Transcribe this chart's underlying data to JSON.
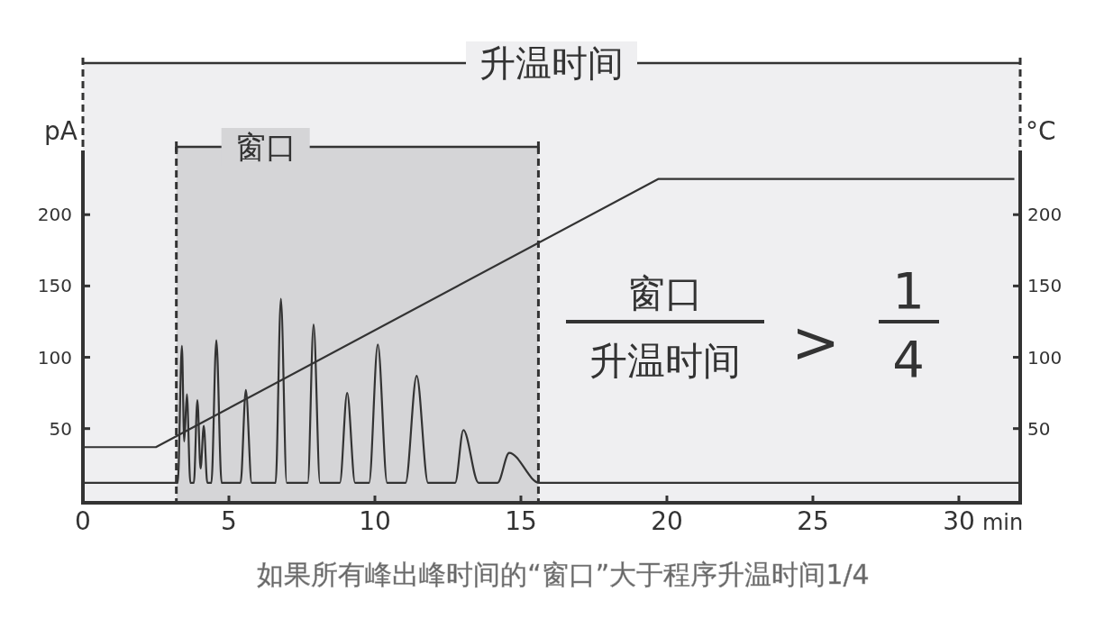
{
  "chart_data": {
    "type": "line",
    "xlabel": "min",
    "ylabel": "pA",
    "y2label": "°C",
    "xlim": [
      0,
      32.1
    ],
    "xticks": [
      0,
      5,
      10,
      15,
      20,
      25,
      30
    ],
    "ylim": [
      -2,
      245
    ],
    "yticks": [
      50,
      100,
      150,
      200
    ],
    "y2lim": [
      -2,
      245
    ],
    "y2ticks": [
      50,
      100,
      150,
      200
    ],
    "grid": false,
    "line_style": "solid",
    "marker": "none",
    "series": [
      {
        "color": "#333333",
        "x": [
          0,
          3.25,
          3.39,
          3.47,
          3.56,
          3.68,
          3.8,
          3.92,
          4.03,
          4.14,
          4.26,
          4.4,
          4.57,
          4.75,
          5.4,
          5.58,
          5.78,
          6.6,
          6.78,
          6.98,
          7.7,
          7.9,
          8.12,
          8.8,
          9.05,
          9.32,
          9.8,
          10.1,
          10.42,
          11.05,
          11.43,
          11.82,
          12.75,
          13.03,
          13.55,
          14.2,
          14.6,
          15.63,
          32.1
        ],
        "values": [
          12,
          12,
          108,
          41,
          74,
          12,
          12,
          70,
          22,
          52,
          12,
          12,
          112,
          12,
          12,
          77,
          12,
          12,
          141,
          12,
          12,
          123,
          12,
          12,
          75,
          12,
          12,
          109,
          12,
          12,
          87,
          12,
          12,
          49,
          12,
          12,
          33,
          12,
          12
        ]
      },
      {
        "color": "#333333",
        "axis": "y2",
        "x": [
          0,
          2.5,
          19.7,
          31.9
        ],
        "values": [
          37,
          37,
          225,
          225
        ]
      }
    ],
    "bands": [
      {
        "axis": "x",
        "from": 0,
        "to": 32.1,
        "label": "升温时间",
        "color": "#efeff1"
      },
      {
        "axis": "x",
        "from": 3.2,
        "to": 15.6,
        "label": "窗口",
        "color": "#d5d5d7"
      }
    ],
    "ref_lines": [
      {
        "axis": "x",
        "value": 3.2,
        "line_style": "dashed",
        "color": "#333333"
      },
      {
        "axis": "x",
        "value": 15.6,
        "line_style": "dashed",
        "color": "#333333"
      }
    ],
    "annotations": [
      "窗口",
      "升温时间",
      ">",
      "1",
      "4",
      "如果所有峰出峰时间的“窗口”大于程序升温时间1/4"
    ]
  }
}
